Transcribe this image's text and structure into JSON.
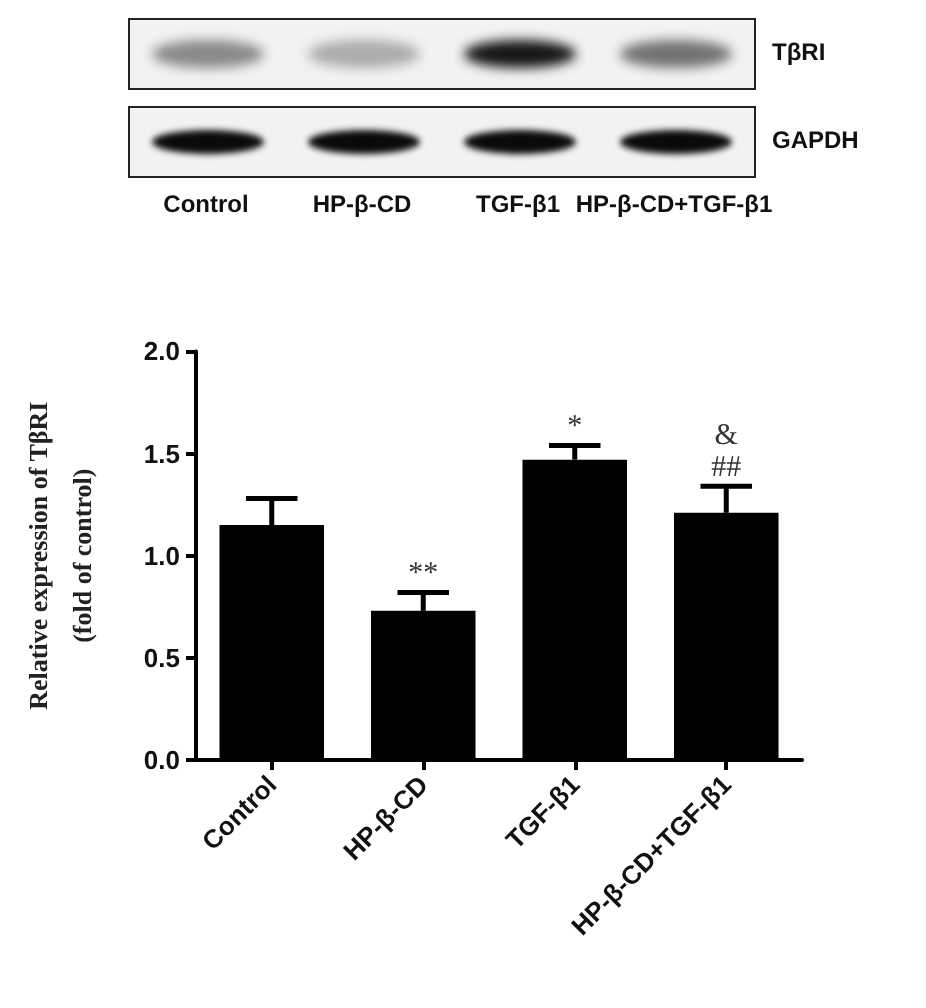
{
  "chart_data": {
    "type": "bar",
    "categories": [
      "Control",
      "HP-β-CD",
      "TGF-β1",
      "HP-β-CD+TGF-β1"
    ],
    "values": [
      1.15,
      0.73,
      1.47,
      1.21
    ],
    "errors": [
      0.13,
      0.09,
      0.07,
      0.13
    ],
    "color": "#000000",
    "ylabel": "Relative expression of TβRI\n(fold of control)",
    "ylim": [
      0,
      2
    ],
    "yticks": [
      {
        "value": 0,
        "label": "0.0"
      },
      {
        "value": 0.5,
        "label": "0.5"
      },
      {
        "value": 1,
        "label": "1.0"
      },
      {
        "value": 1.5,
        "label": "1.5"
      },
      {
        "value": 2,
        "label": "2.0"
      }
    ],
    "annotations": [
      "TβRI",
      "GAPDH",
      "Control",
      "HP-β-CD",
      "TGF-β1",
      "HP-β-CD+TGF-β1",
      {
        "text": "**",
        "x": "HP-β-CD",
        "y": 0.73
      },
      {
        "text": "*",
        "x": "TGF-β1",
        "y": 1.47
      },
      {
        "text": "##",
        "x": "HP-β-CD+TGF-β1",
        "y": 1.21
      },
      {
        "text": "&",
        "x": "HP-β-CD+TGF-β1",
        "y": 1.21
      }
    ]
  }
}
